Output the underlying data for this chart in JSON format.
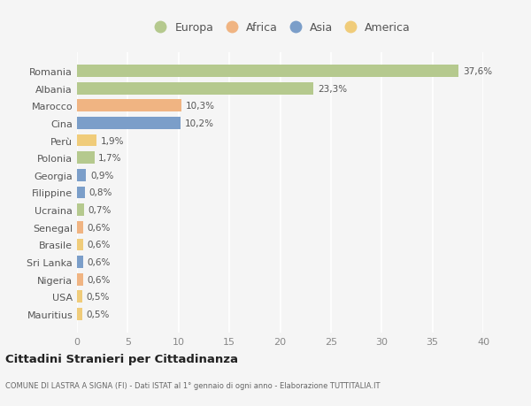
{
  "categories": [
    "Mauritius",
    "USA",
    "Nigeria",
    "Sri Lanka",
    "Brasile",
    "Senegal",
    "Ucraina",
    "Filippine",
    "Georgia",
    "Polonia",
    "Perù",
    "Cina",
    "Marocco",
    "Albania",
    "Romania"
  ],
  "values": [
    0.5,
    0.5,
    0.6,
    0.6,
    0.6,
    0.6,
    0.7,
    0.8,
    0.9,
    1.7,
    1.9,
    10.2,
    10.3,
    23.3,
    37.6
  ],
  "labels": [
    "0,5%",
    "0,5%",
    "0,6%",
    "0,6%",
    "0,6%",
    "0,6%",
    "0,7%",
    "0,8%",
    "0,9%",
    "1,7%",
    "1,9%",
    "10,2%",
    "10,3%",
    "23,3%",
    "37,6%"
  ],
  "continents": [
    "America",
    "America",
    "Africa",
    "Asia",
    "America",
    "Africa",
    "Europa",
    "Asia",
    "Asia",
    "Europa",
    "America",
    "Asia",
    "Africa",
    "Europa",
    "Europa"
  ],
  "continent_colors": {
    "Europa": "#b5c98e",
    "Africa": "#f0b482",
    "Asia": "#7b9ec9",
    "America": "#f0cc7a"
  },
  "legend_order": [
    "Europa",
    "Africa",
    "Asia",
    "America"
  ],
  "title": "Cittadini Stranieri per Cittadinanza",
  "subtitle": "COMUNE DI LASTRA A SIGNA (FI) - Dati ISTAT al 1° gennaio di ogni anno - Elaborazione TUTTITALIA.IT",
  "xlim": [
    0,
    40
  ],
  "xticks": [
    0,
    5,
    10,
    15,
    20,
    25,
    30,
    35,
    40
  ],
  "bg_color": "#f5f5f5",
  "grid_color": "#ffffff",
  "bar_height": 0.7
}
